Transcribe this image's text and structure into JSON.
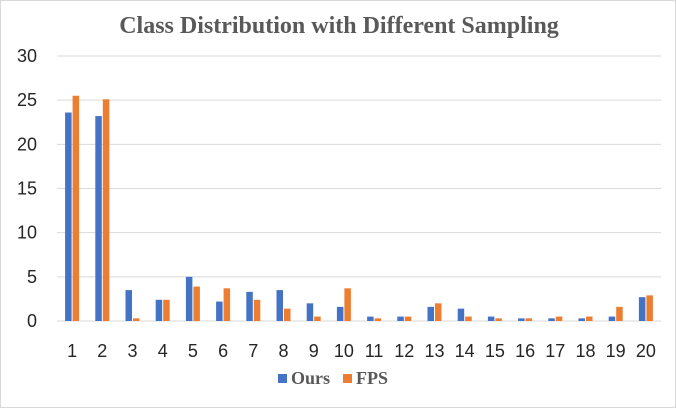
{
  "chart_data": {
    "type": "bar",
    "title": "Class Distribution with Different Sampling",
    "xlabel": "",
    "ylabel": "",
    "ylim": [
      0,
      30
    ],
    "yticks": [
      0,
      5,
      10,
      15,
      20,
      25,
      30
    ],
    "grid": true,
    "legend_position": "bottom",
    "categories": [
      "1",
      "2",
      "3",
      "4",
      "5",
      "6",
      "7",
      "8",
      "9",
      "10",
      "11",
      "12",
      "13",
      "14",
      "15",
      "16",
      "17",
      "18",
      "19",
      "20"
    ],
    "series": [
      {
        "name": "Ours",
        "color": "#4472C4",
        "values": [
          23.6,
          23.2,
          3.5,
          2.4,
          5.0,
          2.2,
          3.3,
          3.5,
          2.0,
          1.6,
          0.5,
          0.5,
          1.6,
          1.4,
          0.5,
          0.3,
          0.3,
          0.3,
          0.5,
          2.7
        ]
      },
      {
        "name": "FPS",
        "color": "#ED7D31",
        "values": [
          25.5,
          25.1,
          0.3,
          2.4,
          3.9,
          3.7,
          2.4,
          1.4,
          0.5,
          3.7,
          0.3,
          0.5,
          2.0,
          0.5,
          0.3,
          0.3,
          0.5,
          0.5,
          1.6,
          2.9
        ]
      }
    ]
  }
}
